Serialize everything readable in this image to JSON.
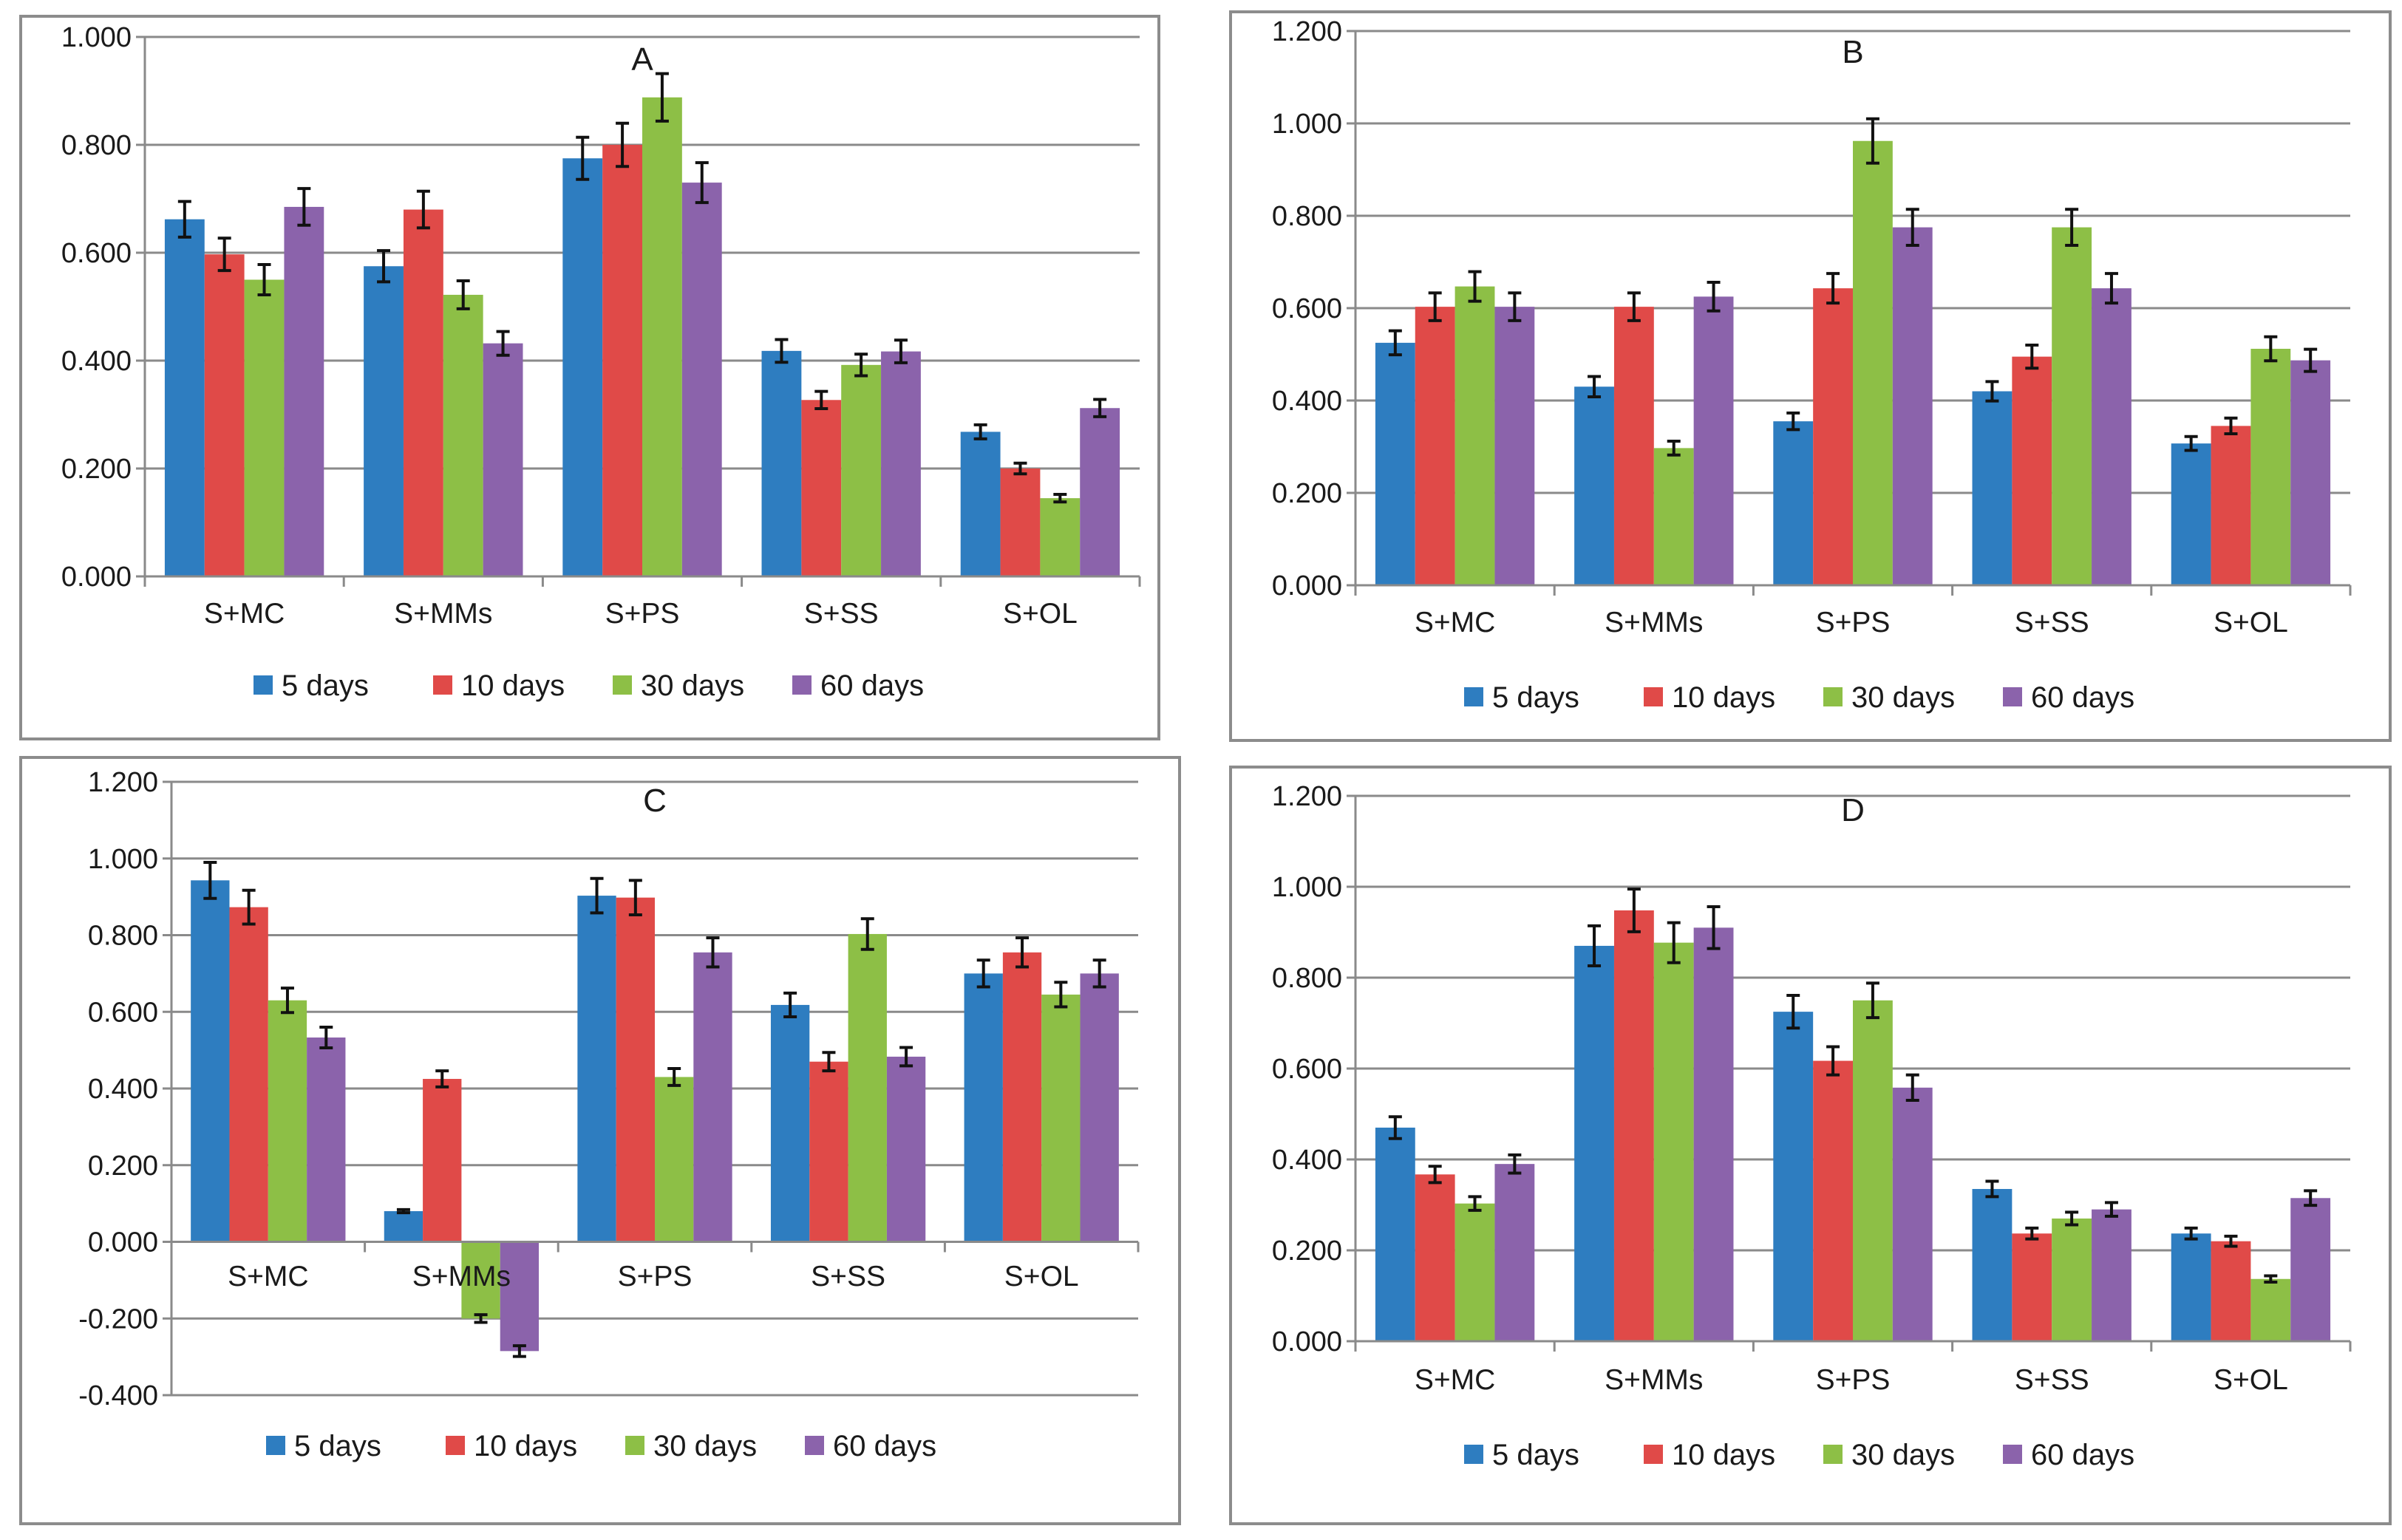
{
  "series_colors": {
    "5 days": "#2E7DC0",
    "10 days": "#E04A48",
    "30 days": "#8DBF46",
    "60 days": "#8B63AB"
  },
  "chart_data": [
    {
      "type": "bar",
      "title": "A",
      "categories": [
        "S+MC",
        "S+MMs",
        "S+PS",
        "S+SS",
        "S+OL"
      ],
      "ylim": [
        0,
        1
      ],
      "ytick_step": 0.2,
      "ytick_labels": [
        "0.000",
        "0.200",
        "0.400",
        "0.600",
        "0.800",
        "1.000"
      ],
      "grid": true,
      "legend": "bottom",
      "series": [
        {
          "name": "5 days",
          "values": [
            0.662,
            0.575,
            0.775,
            0.418,
            0.268
          ],
          "errors": [
            0.033,
            0.029,
            0.039,
            0.021,
            0.013
          ]
        },
        {
          "name": "10 days",
          "values": [
            0.597,
            0.68,
            0.8,
            0.327,
            0.2
          ],
          "errors": [
            0.03,
            0.034,
            0.04,
            0.016,
            0.01
          ]
        },
        {
          "name": "30 days",
          "values": [
            0.55,
            0.522,
            0.888,
            0.392,
            0.145
          ],
          "errors": [
            0.028,
            0.026,
            0.044,
            0.02,
            0.007
          ]
        },
        {
          "name": "60 days",
          "values": [
            0.685,
            0.432,
            0.73,
            0.417,
            0.312
          ],
          "errors": [
            0.034,
            0.022,
            0.037,
            0.021,
            0.016
          ]
        }
      ]
    },
    {
      "type": "bar",
      "title": "B",
      "categories": [
        "S+MC",
        "S+MMs",
        "S+PS",
        "S+SS",
        "S+OL"
      ],
      "ylim": [
        0,
        1.2
      ],
      "ytick_step": 0.2,
      "ytick_labels": [
        "0.000",
        "0.200",
        "0.400",
        "0.600",
        "0.800",
        "1.000",
        "1.200"
      ],
      "grid": true,
      "legend": "bottom",
      "series": [
        {
          "name": "5 days",
          "values": [
            0.525,
            0.43,
            0.355,
            0.42,
            0.307
          ],
          "errors": [
            0.026,
            0.022,
            0.018,
            0.021,
            0.015
          ]
        },
        {
          "name": "10 days",
          "values": [
            0.603,
            0.603,
            0.643,
            0.495,
            0.345
          ],
          "errors": [
            0.03,
            0.03,
            0.032,
            0.025,
            0.017
          ]
        },
        {
          "name": "30 days",
          "values": [
            0.647,
            0.297,
            0.962,
            0.775,
            0.512
          ],
          "errors": [
            0.032,
            0.015,
            0.048,
            0.039,
            0.026
          ]
        },
        {
          "name": "60 days",
          "values": [
            0.603,
            0.625,
            0.775,
            0.643,
            0.487
          ],
          "errors": [
            0.03,
            0.031,
            0.039,
            0.032,
            0.024
          ]
        }
      ]
    },
    {
      "type": "bar",
      "title": "C",
      "categories": [
        "S+MC",
        "S+MMs",
        "S+PS",
        "S+SS",
        "S+OL"
      ],
      "ylim": [
        -0.4,
        1.2
      ],
      "ytick_step": 0.2,
      "ytick_labels": [
        "-0.400",
        "-0.200",
        "0.000",
        "0.200",
        "0.400",
        "0.600",
        "0.800",
        "1.000",
        "1.200"
      ],
      "grid": true,
      "legend": "bottom",
      "series": [
        {
          "name": "5 days",
          "values": [
            0.943,
            0.08,
            0.903,
            0.618,
            0.7
          ],
          "errors": [
            0.047,
            0.004,
            0.045,
            0.031,
            0.035
          ]
        },
        {
          "name": "10 days",
          "values": [
            0.873,
            0.425,
            0.898,
            0.47,
            0.755
          ],
          "errors": [
            0.044,
            0.021,
            0.045,
            0.024,
            0.038
          ]
        },
        {
          "name": "30 days",
          "values": [
            0.63,
            -0.2,
            0.43,
            0.803,
            0.645
          ],
          "errors": [
            0.032,
            0.01,
            0.022,
            0.04,
            0.032
          ]
        },
        {
          "name": "60 days",
          "values": [
            0.533,
            -0.285,
            0.755,
            0.483,
            0.7
          ],
          "errors": [
            0.027,
            0.014,
            0.038,
            0.024,
            0.035
          ]
        }
      ]
    },
    {
      "type": "bar",
      "title": "D",
      "categories": [
        "S+MC",
        "S+MMs",
        "S+PS",
        "S+SS",
        "S+OL"
      ],
      "ylim": [
        0,
        1.2
      ],
      "ytick_step": 0.2,
      "ytick_labels": [
        "0.000",
        "0.200",
        "0.400",
        "0.600",
        "0.800",
        "1.000",
        "1.200"
      ],
      "grid": true,
      "legend": "bottom",
      "series": [
        {
          "name": "5 days",
          "values": [
            0.47,
            0.87,
            0.725,
            0.335,
            0.237
          ],
          "errors": [
            0.024,
            0.044,
            0.036,
            0.017,
            0.012
          ]
        },
        {
          "name": "10 days",
          "values": [
            0.367,
            0.948,
            0.617,
            0.237,
            0.22
          ],
          "errors": [
            0.018,
            0.047,
            0.031,
            0.012,
            0.011
          ]
        },
        {
          "name": "30 days",
          "values": [
            0.303,
            0.877,
            0.75,
            0.27,
            0.137
          ],
          "errors": [
            0.015,
            0.044,
            0.038,
            0.014,
            0.007
          ]
        },
        {
          "name": "60 days",
          "values": [
            0.39,
            0.91,
            0.558,
            0.29,
            0.315
          ],
          "errors": [
            0.02,
            0.046,
            0.028,
            0.015,
            0.016
          ]
        }
      ]
    }
  ]
}
